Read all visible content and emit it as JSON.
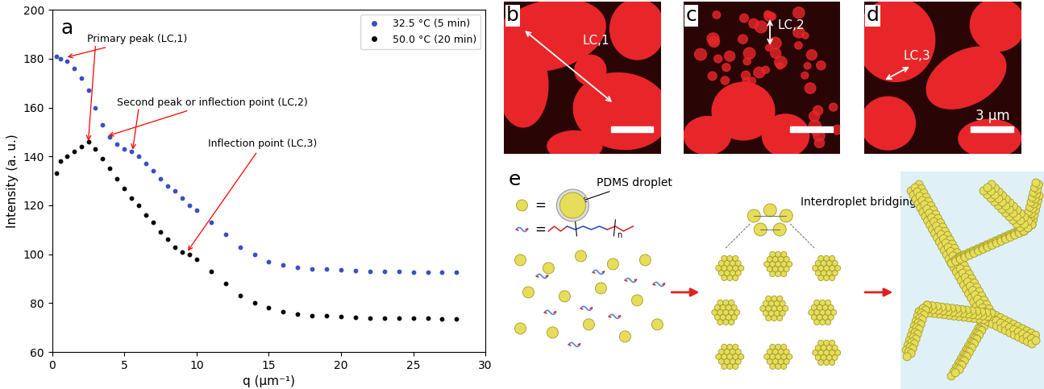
{
  "chart_data": {
    "type": "scatter",
    "panel_label": "a",
    "x_label": "q (μm⁻¹)",
    "y_label": "Intensity (a. u.)",
    "xlim": [
      0,
      30
    ],
    "xticks": [
      0,
      5,
      10,
      15,
      20,
      25,
      30
    ],
    "ylim": [
      60,
      200
    ],
    "yticks": [
      60,
      80,
      100,
      120,
      140,
      160,
      180,
      200
    ],
    "legend": "upper right",
    "marker": "o",
    "annotations": [
      "Primary peak (LC,1)",
      "Second peak or inflection point (LC,2)",
      "Inflection point (LC,3)"
    ],
    "series": [
      {
        "name": "32.5 °C (5 min)",
        "color": "#3a4fc4",
        "x": [
          0.3,
          0.6,
          1,
          1.5,
          2,
          2.5,
          3,
          3.5,
          4,
          4.5,
          5,
          5.5,
          6,
          6.5,
          7,
          7.5,
          8,
          8.5,
          9,
          9.5,
          10,
          11,
          12,
          13,
          14,
          15,
          16,
          17,
          18,
          19,
          20,
          21,
          22,
          23,
          24,
          25,
          26,
          27,
          28
        ],
        "values": [
          181,
          180,
          179,
          176,
          172,
          167,
          160,
          153,
          148,
          145,
          143,
          142,
          140,
          137,
          134,
          131,
          128,
          126,
          123,
          120,
          118,
          113,
          108,
          103,
          100,
          97,
          95.5,
          94.5,
          94,
          93.8,
          93.5,
          93.3,
          93,
          93,
          93,
          92.8,
          92.8,
          92.6,
          92.5
        ]
      },
      {
        "name": "50.0 °C (20 min)",
        "color": "#000000",
        "x": [
          0.3,
          0.6,
          1,
          1.5,
          2,
          2.5,
          3,
          3.5,
          4,
          4.5,
          5,
          5.5,
          6,
          6.5,
          7,
          7.5,
          8,
          8.5,
          9,
          9.5,
          10,
          11,
          12,
          13,
          14,
          15,
          16,
          17,
          18,
          19,
          20,
          21,
          22,
          23,
          24,
          25,
          26,
          27,
          28
        ],
        "values": [
          133,
          138,
          140,
          142,
          144,
          146,
          143,
          139,
          135,
          131,
          127,
          123,
          120,
          116,
          113,
          109,
          106,
          103,
          101,
          100,
          98,
          93,
          88,
          83,
          80,
          78,
          76.5,
          75.5,
          75,
          74.8,
          74.5,
          74.3,
          74,
          74,
          74,
          73.8,
          73.8,
          73.6,
          73.5
        ]
      }
    ]
  },
  "images": [
    {
      "label": "b",
      "marker": "LC,1"
    },
    {
      "label": "c",
      "marker": "LC,2"
    },
    {
      "label": "d",
      "marker": "LC,3",
      "scale_bar": "3 μm"
    }
  ],
  "schematic": {
    "label": "e",
    "equals": "=",
    "droplet_label": "PDMS droplet",
    "repeat_index": "n",
    "bridging_label": "Interdroplet bridging"
  }
}
